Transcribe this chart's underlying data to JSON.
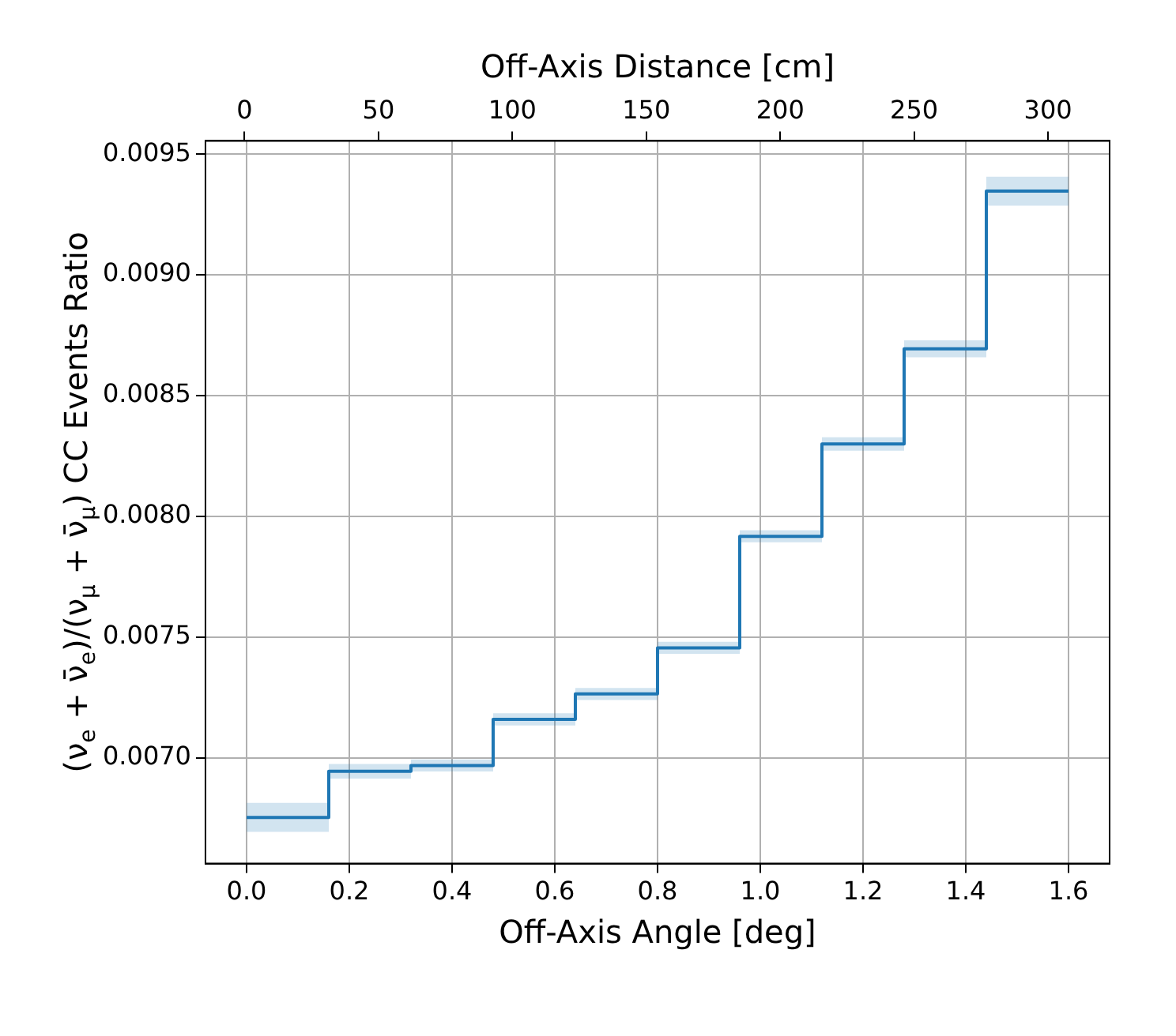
{
  "chart_data": {
    "type": "step",
    "xlabel": "Off-Axis Angle [deg]",
    "x2label": "Off-Axis Distance [cm]",
    "ylabel": "(ν$_{e}$ + ν̄$_{e}$)/(ν$_{μ}$ + ν̄$_{μ}$) CC Events Ratio",
    "x": [
      0,
      0.16,
      0.32,
      0.48,
      0.64,
      0.8,
      0.96,
      1.12,
      1.28,
      1.44,
      1.6
    ],
    "series": [
      {
        "color": "#1f77b4",
        "values": [
          0.006754,
          0.006945,
          0.006969,
          0.00716,
          0.007265,
          0.007456,
          0.007918,
          0.0083,
          0.008694,
          0.009347,
          0.009347
        ],
        "lower": [
          0.006694,
          0.006915,
          0.006944,
          0.007135,
          0.00724,
          0.007431,
          0.007893,
          0.008272,
          0.008659,
          0.009287,
          0.009287
        ],
        "upper": [
          0.006814,
          0.006975,
          0.006994,
          0.007185,
          0.00729,
          0.007481,
          0.007943,
          0.008328,
          0.008729,
          0.009407,
          0.009407
        ]
      }
    ],
    "xlim": [
      -0.08,
      1.68
    ],
    "xticks": [
      {
        "value": 0,
        "label": "0.0"
      },
      {
        "value": 0.2,
        "label": "0.2"
      },
      {
        "value": 0.4,
        "label": "0.4"
      },
      {
        "value": 0.6,
        "label": "0.6"
      },
      {
        "value": 0.8,
        "label": "0.8"
      },
      {
        "value": 1,
        "label": "1.0"
      },
      {
        "value": 1.2,
        "label": "1.2"
      },
      {
        "value": 1.4,
        "label": "1.4"
      },
      {
        "value": 1.6,
        "label": "1.6"
      }
    ],
    "x2lim": [
      -14.6,
      323
    ],
    "x2ticks": [
      0,
      50,
      100,
      150,
      200,
      250,
      300
    ],
    "ylim": [
      0.006563,
      0.009555
    ],
    "yticks": [
      {
        "value": 0.007,
        "label": "0.0070"
      },
      {
        "value": 0.0075,
        "label": "0.0075"
      },
      {
        "value": 0.008,
        "label": "0.0080"
      },
      {
        "value": 0.0085,
        "label": "0.0085"
      },
      {
        "value": 0.009,
        "label": "0.0090"
      },
      {
        "value": 0.0095,
        "label": "0.0095"
      }
    ],
    "grid": true,
    "marker": "none",
    "line_style": "solid"
  }
}
